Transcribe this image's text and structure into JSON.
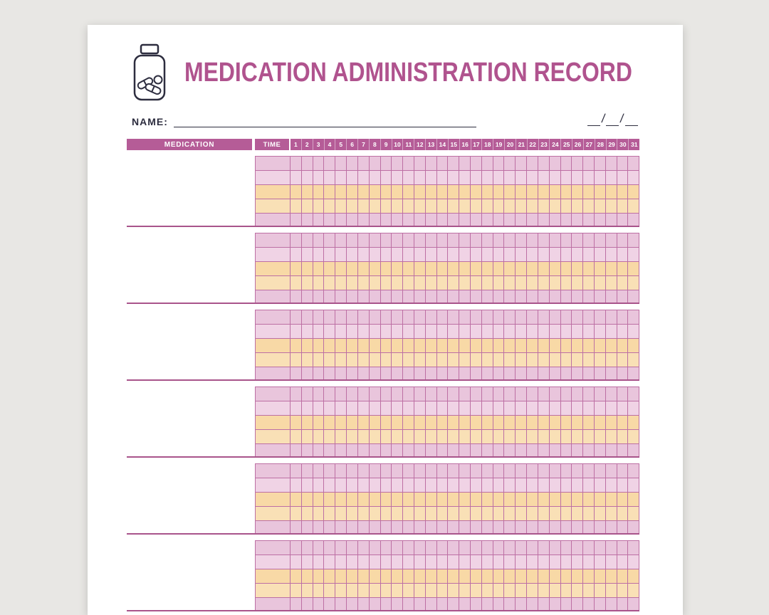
{
  "header": {
    "title": "MEDICATION ADMINISTRATION RECORD",
    "name_label": "NAME:",
    "date_slash": "/",
    "icon": "pill-bottle-icon"
  },
  "table": {
    "columns": {
      "medication": "MEDICATION",
      "time": "TIME"
    },
    "days": [
      "1",
      "2",
      "3",
      "4",
      "5",
      "6",
      "7",
      "8",
      "9",
      "10",
      "11",
      "12",
      "13",
      "14",
      "15",
      "16",
      "17",
      "18",
      "19",
      "20",
      "21",
      "22",
      "23",
      "24",
      "25",
      "26",
      "27",
      "28",
      "29",
      "30",
      "31"
    ],
    "medication_rows": [
      {
        "medication": "",
        "times": [
          "",
          "",
          "",
          "",
          ""
        ]
      },
      {
        "medication": "",
        "times": [
          "",
          "",
          "",
          "",
          ""
        ]
      },
      {
        "medication": "",
        "times": [
          "",
          "",
          "",
          "",
          ""
        ]
      },
      {
        "medication": "",
        "times": [
          "",
          "",
          "",
          "",
          ""
        ]
      },
      {
        "medication": "",
        "times": [
          "",
          "",
          "",
          "",
          ""
        ]
      },
      {
        "medication": "",
        "times": [
          "",
          "",
          "",
          "",
          ""
        ]
      }
    ]
  },
  "colors": {
    "accent": "#b0538e",
    "header_bg": "#b55c97",
    "row_pink": "#e9c5dc",
    "row_pink_light": "#f0d3e5",
    "row_orange": "#f8d9a6",
    "row_orange_light": "#f9e0b6",
    "grid_line": "#bd6fa4",
    "divider": "#a9548b",
    "ink": "#2d2d3f",
    "page_bg": "#e8e7e4"
  }
}
